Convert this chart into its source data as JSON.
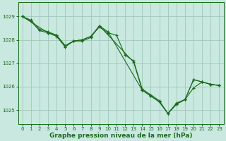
{
  "background_color": "#c8e8e0",
  "grid_color": "#a0c8b8",
  "line_color": "#1a6b1a",
  "xlabel": "Graphe pression niveau de la mer (hPa)",
  "xlabel_fontsize": 6.5,
  "xlim": [
    -0.5,
    23.5
  ],
  "ylim": [
    1024.4,
    1029.6
  ],
  "yticks": [
    1025,
    1026,
    1027,
    1028,
    1029
  ],
  "xticks": [
    0,
    1,
    2,
    3,
    4,
    5,
    6,
    7,
    8,
    9,
    10,
    11,
    12,
    13,
    14,
    15,
    16,
    17,
    18,
    19,
    20,
    21,
    22,
    23
  ],
  "series": [
    {
      "x": [
        0,
        1,
        2,
        3,
        4,
        5,
        6,
        7,
        8,
        9,
        10,
        11,
        12,
        13,
        14,
        15,
        16,
        17,
        18,
        19,
        20,
        21,
        22,
        23
      ],
      "y": [
        1029.0,
        1028.8,
        1028.4,
        1028.3,
        1028.2,
        1027.75,
        1027.95,
        1028.0,
        1028.15,
        1028.55,
        1028.3,
        1028.2,
        1027.35,
        1027.1,
        1025.9,
        1025.65,
        1025.4,
        1024.85,
        1025.3,
        1025.45,
        1026.3,
        1026.2,
        1026.1,
        1026.05
      ]
    },
    {
      "x": [
        0,
        1,
        2,
        3,
        4,
        5,
        6,
        7,
        8,
        9,
        10,
        14,
        15,
        16,
        17,
        18,
        19,
        20,
        21,
        22,
        23
      ],
      "y": [
        1029.0,
        1028.85,
        1028.45,
        1028.35,
        1028.2,
        1027.75,
        1027.95,
        1028.0,
        1028.15,
        1028.6,
        1028.35,
        1025.85,
        1025.6,
        1025.35,
        1024.85,
        1025.25,
        1025.45,
        1026.3,
        1026.2,
        1026.1,
        1026.05
      ]
    },
    {
      "x": [
        0,
        3,
        4,
        5,
        6,
        7,
        8,
        9,
        13,
        14,
        15,
        16,
        17,
        18,
        19,
        20,
        21,
        22,
        23
      ],
      "y": [
        1029.0,
        1028.3,
        1028.15,
        1027.7,
        1027.95,
        1027.95,
        1028.1,
        1028.6,
        1027.05,
        1025.85,
        1025.6,
        1025.35,
        1024.85,
        1025.25,
        1025.45,
        1025.95,
        1026.2,
        1026.1,
        1026.05
      ]
    }
  ]
}
